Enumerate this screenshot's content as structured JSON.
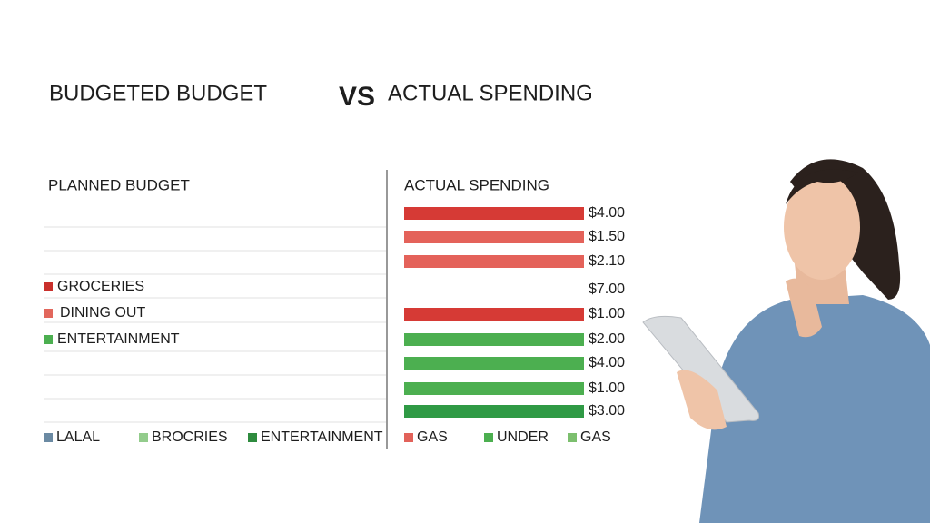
{
  "title": {
    "left": "BUDGETED BUDGET",
    "vs": "VS",
    "right": "ACTUAL SPENDING"
  },
  "left_panel": {
    "heading": "PLANNED BUDGET",
    "items": [
      {
        "label": "GROCERIES",
        "color": "#c9302c"
      },
      {
        "label": "DINING OUT",
        "color": "#e2675c"
      },
      {
        "label": "ENTERTAINMENT",
        "color": "#4caf50"
      }
    ]
  },
  "right_panel": {
    "heading": "ACTUAL SPENDING",
    "rows": [
      {
        "amount": "$4.00",
        "color": "#d63a35"
      },
      {
        "amount": "$1.50",
        "color": "#e4625a"
      },
      {
        "amount": "$2.10",
        "color": "#e4625a"
      },
      {
        "amount": "$7.00",
        "color": null
      },
      {
        "amount": "$1.00",
        "color": "#d63a35"
      },
      {
        "amount": "$2.00",
        "color": "#4caf50"
      },
      {
        "amount": "$4.00",
        "color": "#4caf50"
      },
      {
        "amount": "$1.00",
        "color": "#4caf50"
      },
      {
        "amount": "$3.00",
        "color": "#2f9a45"
      }
    ]
  },
  "legend_left": [
    {
      "label": "LALAL",
      "color": "#6b8aa3"
    },
    {
      "label": "BROCRIES",
      "color": "#93cc8c"
    },
    {
      "label": "ENTERTAINMENT",
      "color": "#2e8b3e"
    }
  ],
  "legend_right": [
    {
      "label": "GAS",
      "color": "#e2625a"
    },
    {
      "label": "UNDER",
      "color": "#4caf50"
    },
    {
      "label": "GAS",
      "color": "#7cbf6e"
    }
  ]
}
